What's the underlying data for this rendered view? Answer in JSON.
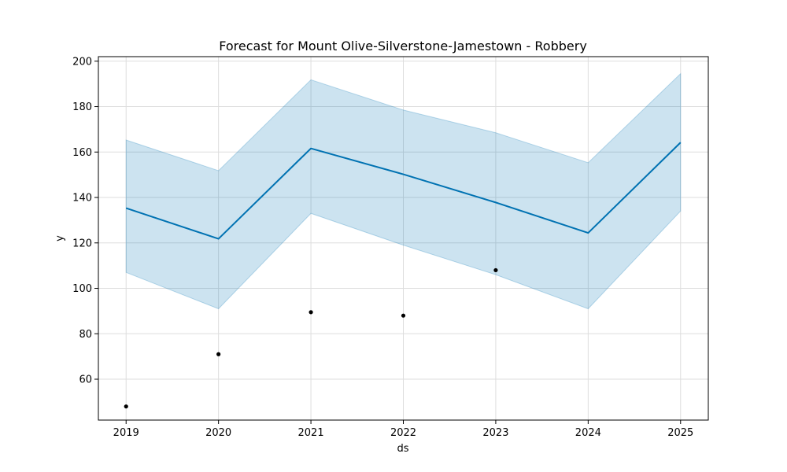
{
  "chart_data": {
    "type": "line",
    "title": "Forecast for Mount Olive-Silverstone-Jamestown - Robbery",
    "xlabel": "ds",
    "ylabel": "y",
    "x": [
      "2019",
      "2020",
      "2021",
      "2022",
      "2023",
      "2024",
      "2025"
    ],
    "x_ticks": [
      "2019",
      "2020",
      "2021",
      "2022",
      "2023",
      "2024",
      "2025"
    ],
    "y_ticks": [
      60,
      80,
      100,
      120,
      140,
      160,
      180,
      200
    ],
    "xlim": [
      2018.7,
      2025.3
    ],
    "ylim": [
      42,
      202
    ],
    "grid": true,
    "legend": "none",
    "series": [
      {
        "kind": "forecast-line",
        "values": [
          135.3,
          121.8,
          161.6,
          150.2,
          137.8,
          124.4,
          164.2
        ]
      },
      {
        "kind": "uncertainty-band",
        "lower": [
          107,
          91,
          133,
          119,
          106,
          91,
          134
        ],
        "upper": [
          165.3,
          151.8,
          191.8,
          178.5,
          168.5,
          155.3,
          194.5
        ]
      },
      {
        "kind": "observed-points",
        "x": [
          "2019",
          "2020",
          "2021",
          "2022",
          "2023"
        ],
        "values": [
          48,
          71,
          89.5,
          88,
          108
        ]
      }
    ],
    "colors": {
      "line": "#0072b2",
      "band_fill": "#0072b2",
      "points": "#000000",
      "grid": "#dddddd"
    }
  }
}
